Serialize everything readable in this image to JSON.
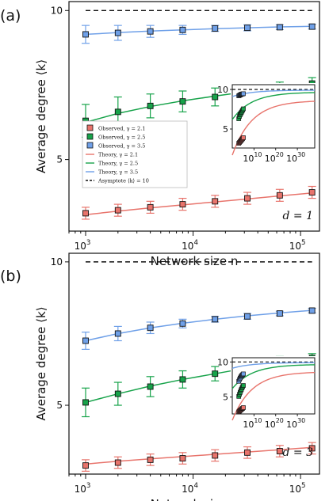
{
  "colors": {
    "gamma_2_1": "#e8746c",
    "gamma_2_5": "#17a34a",
    "gamma_3_5": "#6fa0e8",
    "asymptote": "#111111"
  },
  "chart_data": [
    {
      "type": "line",
      "panel": "(a)",
      "annotation": "d = 1",
      "xlabel": "Network size n",
      "ylabel": "Average degree ⟨k⟩",
      "x_scale": "log",
      "x_ticks": [
        "10^3",
        "10^4",
        "10^5"
      ],
      "y_ticks": [
        "5",
        "10"
      ],
      "ylim": [
        2.6,
        10.3
      ],
      "x": [
        1000,
        2000,
        4000,
        8000,
        16000,
        32000,
        64000,
        128000
      ],
      "series": [
        {
          "name": "Observed, γ = 2.1",
          "kind": "observed",
          "color_key": "gamma_2_1",
          "values": [
            3.2,
            3.3,
            3.4,
            3.5,
            3.6,
            3.7,
            3.8,
            3.9
          ],
          "errors": [
            0.2,
            0.2,
            0.2,
            0.2,
            0.2,
            0.2,
            0.2,
            0.2
          ]
        },
        {
          "name": "Observed, γ = 2.5",
          "kind": "observed",
          "color_key": "gamma_2_5",
          "values": [
            6.3,
            6.6,
            6.8,
            6.95,
            7.1,
            7.25,
            7.4,
            7.55
          ],
          "errors": [
            0.55,
            0.5,
            0.4,
            0.35,
            0.3,
            0.25,
            0.2,
            0.2
          ]
        },
        {
          "name": "Observed, γ = 3.5",
          "kind": "observed",
          "color_key": "gamma_3_5",
          "values": [
            9.2,
            9.25,
            9.3,
            9.35,
            9.4,
            9.42,
            9.44,
            9.46
          ],
          "errors": [
            0.3,
            0.25,
            0.2,
            0.15,
            0.1,
            0.1,
            0.08,
            0.08
          ]
        },
        {
          "name": "Theory, γ = 2.1",
          "kind": "theory",
          "color_key": "gamma_2_1",
          "values": [
            3.15,
            3.27,
            3.38,
            3.48,
            3.58,
            3.68,
            3.78,
            3.88
          ]
        },
        {
          "name": "Theory, γ = 2.5",
          "kind": "theory",
          "color_key": "gamma_2_5",
          "values": [
            6.25,
            6.55,
            6.78,
            6.97,
            7.13,
            7.28,
            7.42,
            7.55
          ]
        },
        {
          "name": "Theory, γ = 3.5",
          "kind": "theory",
          "color_key": "gamma_3_5",
          "values": [
            9.2,
            9.26,
            9.31,
            9.35,
            9.39,
            9.42,
            9.45,
            9.47
          ]
        },
        {
          "name": "Asymptote ⟨k⟩ = 10",
          "kind": "asymptote",
          "color_key": "asymptote",
          "value": 10
        }
      ],
      "inset": {
        "x_ticks": [
          "10^10",
          "10^20",
          "10^30"
        ],
        "y_ticks": [
          "5",
          "10"
        ],
        "x_range_log10": [
          0,
          38
        ],
        "ylim": [
          2.6,
          10.6
        ],
        "theory": [
          {
            "color_key": "gamma_2_1",
            "y_at_x0": 1.7,
            "y_at_end": 8.5
          },
          {
            "color_key": "gamma_2_5",
            "y_at_x0": 6.2,
            "y_at_end": 9.6
          },
          {
            "color_key": "gamma_3_5",
            "y_at_x0": 9.1,
            "y_at_end": 9.9
          }
        ],
        "asymptote": 10
      }
    },
    {
      "type": "line",
      "panel": "(b)",
      "annotation": "d = 3",
      "xlabel": "Network size n",
      "ylabel": "Average degree ⟨k⟩",
      "x_scale": "log",
      "x_ticks": [
        "10^3",
        "10^4",
        "10^5"
      ],
      "y_ticks": [
        "5",
        "10"
      ],
      "ylim": [
        2.6,
        10.3
      ],
      "x": [
        1000,
        2000,
        4000,
        8000,
        16000,
        32000,
        64000,
        128000
      ],
      "series": [
        {
          "name": "Observed, γ = 2.1",
          "kind": "observed",
          "color_key": "gamma_2_1",
          "values": [
            2.9,
            3.0,
            3.1,
            3.15,
            3.25,
            3.35,
            3.4,
            3.5
          ],
          "errors": [
            0.2,
            0.2,
            0.2,
            0.2,
            0.2,
            0.2,
            0.2,
            0.2
          ]
        },
        {
          "name": "Observed, γ = 2.5",
          "kind": "observed",
          "color_key": "gamma_2_5",
          "values": [
            5.1,
            5.4,
            5.65,
            5.9,
            6.1,
            6.3,
            6.5,
            6.65
          ],
          "errors": [
            0.5,
            0.4,
            0.35,
            0.3,
            0.25,
            0.2,
            0.2,
            0.15
          ]
        },
        {
          "name": "Observed, γ = 3.5",
          "kind": "observed",
          "color_key": "gamma_3_5",
          "values": [
            7.25,
            7.5,
            7.7,
            7.85,
            8.0,
            8.1,
            8.2,
            8.3
          ],
          "errors": [
            0.3,
            0.25,
            0.2,
            0.15,
            0.1,
            0.1,
            0.08,
            0.08
          ]
        },
        {
          "name": "Theory, γ = 2.1",
          "kind": "theory",
          "color_key": "gamma_2_1",
          "values": [
            2.95,
            3.05,
            3.13,
            3.21,
            3.29,
            3.37,
            3.45,
            3.53
          ]
        },
        {
          "name": "Theory, γ = 2.5",
          "kind": "theory",
          "color_key": "gamma_2_5",
          "values": [
            5.1,
            5.4,
            5.67,
            5.9,
            6.1,
            6.3,
            6.48,
            6.65
          ]
        },
        {
          "name": "Theory, γ = 3.5",
          "kind": "theory",
          "color_key": "gamma_3_5",
          "values": [
            7.25,
            7.5,
            7.7,
            7.86,
            8.0,
            8.12,
            8.22,
            8.31
          ]
        },
        {
          "name": "Asymptote ⟨k⟩ = 10",
          "kind": "asymptote",
          "color_key": "asymptote",
          "value": 10
        }
      ],
      "inset": {
        "x_ticks": [
          "10^10",
          "10^20",
          "10^30"
        ],
        "y_ticks": [
          "5",
          "10"
        ],
        "x_range_log10": [
          0,
          38
        ],
        "ylim": [
          2.6,
          10.6
        ],
        "theory": [
          {
            "color_key": "gamma_2_1",
            "y_at_x0": 1.7,
            "y_at_end": 8.5
          },
          {
            "color_key": "gamma_2_5",
            "y_at_x0": 6.2,
            "y_at_end": 9.6
          },
          {
            "color_key": "gamma_3_5",
            "y_at_x0": 9.1,
            "y_at_end": 9.9
          }
        ],
        "asymptote": 10
      }
    }
  ]
}
